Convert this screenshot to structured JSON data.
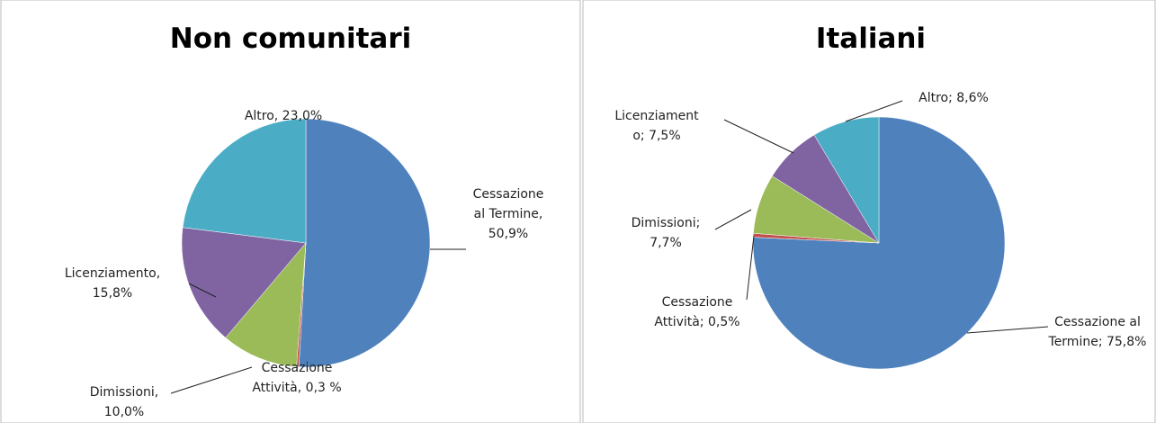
{
  "chart_data": [
    {
      "type": "pie",
      "title": "Non comunitari",
      "values": [
        50.9,
        0.3,
        10.0,
        15.8,
        23.0
      ],
      "value_labels": [
        "Cessazione al Termine, 50,9%",
        "Cessazione Attività, 0,3 %",
        "Dimissioni, 10,0%",
        "Licenziamento, 15,8%",
        "Altro, 23,0%"
      ],
      "colors": [
        "#4f81bd",
        "#c0504d",
        "#9bbb59",
        "#8064a2",
        "#4bacc6"
      ]
    },
    {
      "type": "pie",
      "title": "Italiani",
      "values": [
        75.8,
        0.5,
        7.7,
        7.5,
        8.6
      ],
      "value_labels": [
        "Cessazione al Termine; 75,8%",
        "Cessazione Attività; 0,5%",
        "Dimissioni; 7,7%",
        "Licenziamento; 7,5%",
        "Altro; 8,6%"
      ],
      "colors": [
        "#4f81bd",
        "#c0504d",
        "#9bbb59",
        "#8064a2",
        "#4bacc6"
      ]
    }
  ]
}
